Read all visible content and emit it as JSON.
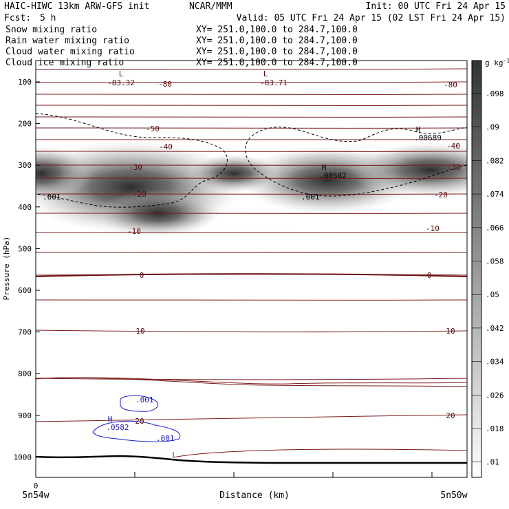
{
  "header": {
    "model": "HAIC-HIWC 13km ARW-GFS init",
    "org": "NCAR/MMM",
    "init": "Init: 00 UTC Fri 24 Apr 15",
    "fcst_label": "Fcst:",
    "fcst_value": "5 h",
    "valid": "Valid: 05 UTC Fri 24 Apr 15 (02 LST Fri 24 Apr 15)"
  },
  "fields": [
    {
      "name": "Snow mixing ratio",
      "xy": "XY= 251.0,100.0 to 284.7,100.0",
      "color": "#000000"
    },
    {
      "name": "Rain water mixing ratio",
      "xy": "XY= 251.0,100.0 to 284.7,100.0",
      "color": "#d40000"
    },
    {
      "name": "Cloud water mixing ratio",
      "xy": "XY= 251.0,100.0 to 284.7,100.0",
      "color": "#0000cc"
    },
    {
      "name": "Cloud ice mixing ratio",
      "xy": "XY= 251.0,100.0 to 284.7,100.0",
      "color": "#000000"
    }
  ],
  "colors": {
    "temperature_contour": "#7a1a1a",
    "cloud_water": "#1a1acc",
    "cloud_ice": "#000000",
    "snow_shade": "#3a3a3a"
  },
  "chart_data": {
    "type": "cross-section",
    "xlabel": "Distance (km)",
    "ylabel": "Pressure (hPa)",
    "x_start_tick": "0",
    "x_left_label": "5n54w",
    "x_right_label": "5n50w",
    "y_ticks": [
      "100",
      "200",
      "300",
      "400",
      "500",
      "600",
      "700",
      "800",
      "900",
      "1000"
    ],
    "colorbar": {
      "unit_text": "g kg",
      "unit_exp": "-1",
      "labels": [
        ".098",
        ".09",
        ".082",
        ".074",
        ".066",
        ".058",
        ".05",
        ".042",
        ".034",
        ".026",
        ".018",
        ".01"
      ]
    },
    "temperature_labels": [
      "-80",
      "-80",
      "-50",
      "-40",
      "-40",
      "-30",
      "-30",
      "-20",
      "-20",
      "-10",
      "-10",
      "0",
      "0",
      "10",
      "10",
      "20",
      "20"
    ],
    "extrema_labels": [
      {
        "sym": "L",
        "val": "-83.32"
      },
      {
        "sym": "L",
        "val": "-83.71"
      },
      {
        "sym": "H",
        "val": ".00689"
      },
      {
        "sym": "H",
        "val": ".00582"
      },
      {
        "sym": "H",
        "val": ".0582"
      }
    ],
    "ice_labels": [
      ".001",
      ".001"
    ],
    "cloud_water_labels": [
      ".001",
      ".001"
    ]
  }
}
